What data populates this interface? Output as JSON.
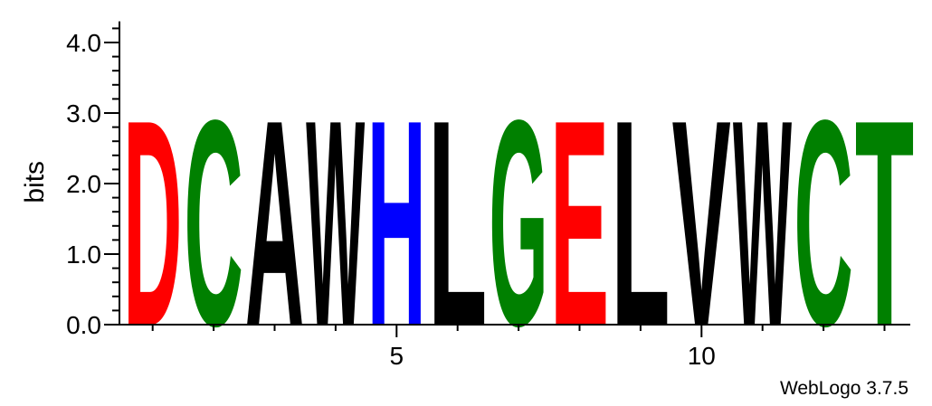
{
  "chart_data": {
    "type": "sequence-logo",
    "ylabel": "bits",
    "ylim": [
      0,
      4.3
    ],
    "yticks": [
      "0.0",
      "1.0",
      "2.0",
      "3.0",
      "4.0"
    ],
    "ytick_values": [
      0,
      1,
      2,
      3,
      4
    ],
    "xticks": [
      "5",
      "10"
    ],
    "xtick_positions": [
      5,
      10
    ],
    "n_positions": 13,
    "positions": [
      {
        "pos": 1,
        "letter": "D",
        "bits": 3.0,
        "color": "#ff0000"
      },
      {
        "pos": 2,
        "letter": "C",
        "bits": 3.0,
        "color": "#008000"
      },
      {
        "pos": 3,
        "letter": "A",
        "bits": 3.0,
        "color": "#000000"
      },
      {
        "pos": 4,
        "letter": "W",
        "bits": 3.0,
        "color": "#000000"
      },
      {
        "pos": 5,
        "letter": "H",
        "bits": 3.0,
        "color": "#0000ff"
      },
      {
        "pos": 6,
        "letter": "L",
        "bits": 3.0,
        "color": "#000000"
      },
      {
        "pos": 7,
        "letter": "G",
        "bits": 3.0,
        "color": "#008000"
      },
      {
        "pos": 8,
        "letter": "E",
        "bits": 3.0,
        "color": "#ff0000"
      },
      {
        "pos": 9,
        "letter": "L",
        "bits": 3.0,
        "color": "#000000"
      },
      {
        "pos": 10,
        "letter": "V",
        "bits": 3.0,
        "color": "#000000"
      },
      {
        "pos": 11,
        "letter": "W",
        "bits": 3.0,
        "color": "#000000"
      },
      {
        "pos": 12,
        "letter": "C",
        "bits": 3.0,
        "color": "#008000"
      },
      {
        "pos": 13,
        "letter": "T",
        "bits": 3.0,
        "color": "#008000"
      }
    ]
  },
  "footer": {
    "credit": "WebLogo 3.7.5"
  }
}
